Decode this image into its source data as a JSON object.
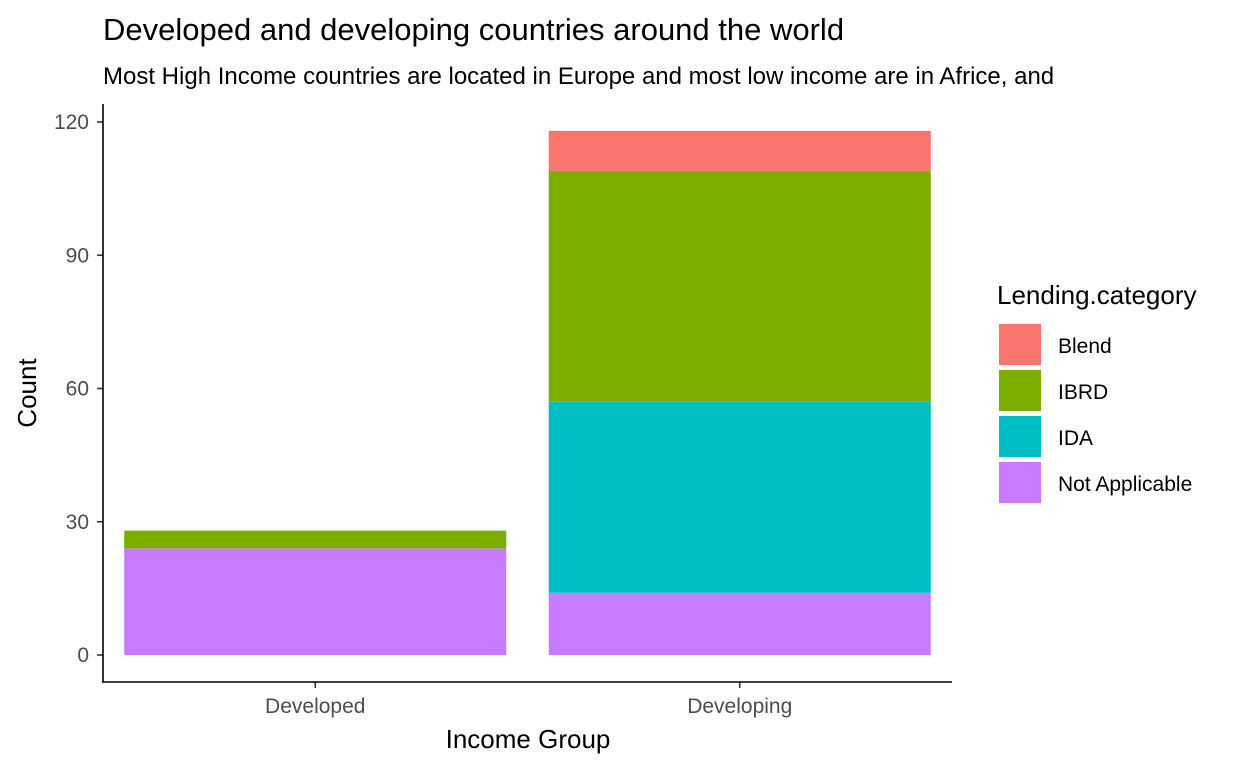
{
  "chart_data": {
    "type": "bar",
    "stacked": true,
    "title": "Developed and developing countries around the world",
    "subtitle": "Most High Income countries are located in Europe and most low income are in Africe, and",
    "xlabel": "Income Group",
    "ylabel": "Count",
    "categories": [
      "Developed",
      "Developing"
    ],
    "ylim": [
      0,
      120
    ],
    "yticks": [
      "0",
      "30",
      "60",
      "90",
      "120"
    ],
    "ytick_values": [
      0,
      30,
      60,
      90,
      120
    ],
    "grid": false,
    "legend": {
      "title": "Lending.category",
      "position": "right"
    },
    "series": [
      {
        "name": "Blend",
        "color": "#F8766D",
        "values": [
          0,
          9
        ]
      },
      {
        "name": "IBRD",
        "color": "#7CAE00",
        "values": [
          4,
          52
        ]
      },
      {
        "name": "IDA",
        "color": "#00BFC4",
        "values": [
          0,
          43
        ]
      },
      {
        "name": "Not Applicable",
        "color": "#C77CFF",
        "values": [
          24,
          14
        ]
      }
    ]
  }
}
